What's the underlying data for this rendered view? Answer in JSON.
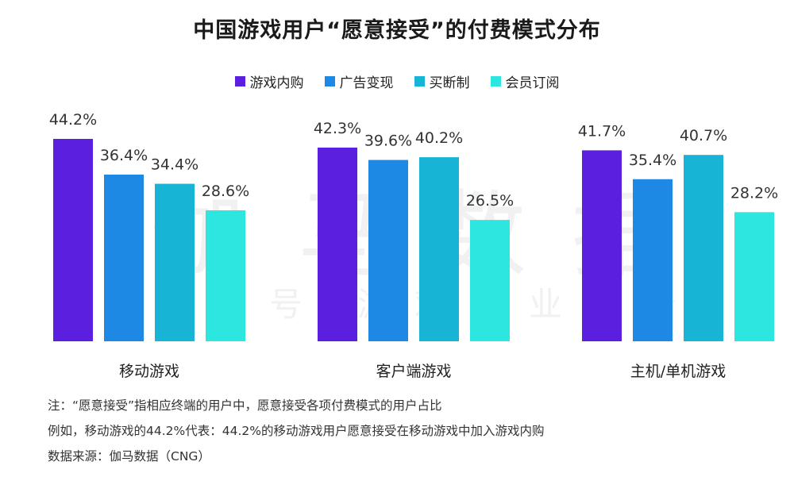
{
  "chart_data": {
    "type": "bar",
    "title": "中国游戏用户“愿意接受”的付费模式分布",
    "categories": [
      "移动游戏",
      "客户端游戏",
      "主机/单机游戏"
    ],
    "series": [
      {
        "name": "游戏内购",
        "color": "#5b1fe0",
        "values": [
          44.2,
          42.3,
          41.7
        ],
        "labels": [
          "44.2%",
          "42.3%",
          "41.7%"
        ]
      },
      {
        "name": "广告变现",
        "color": "#1e88e5",
        "values": [
          36.4,
          39.6,
          35.4
        ],
        "labels": [
          "36.4%",
          "39.6%",
          "35.4%"
        ]
      },
      {
        "name": "买断制",
        "color": "#18b4d6",
        "values": [
          34.4,
          40.2,
          40.7
        ],
        "labels": [
          "34.4%",
          "40.2%",
          "40.7%"
        ]
      },
      {
        "name": "会员订阅",
        "color": "#2ee6e0",
        "values": [
          28.6,
          26.5,
          28.2
        ],
        "labels": [
          "28.6%",
          "26.5%",
          "28.2%"
        ]
      }
    ],
    "ylim": [
      0,
      44.2
    ],
    "legend": "top-center",
    "grid": false
  },
  "watermark": {
    "big": [
      "伽",
      "马",
      "数",
      "据"
    ],
    "small": [
      "微信号",
      "游戏产业报告"
    ]
  },
  "notes": [
    "注：“愿意接受”指相应终端的用户中，愿意接受各项付费模式的用户占比",
    "例如，移动游戏的44.2%代表：44.2%的移动游戏用户愿意接受在移动游戏中加入游戏内购",
    "数据来源：伽马数据（CNG）"
  ]
}
